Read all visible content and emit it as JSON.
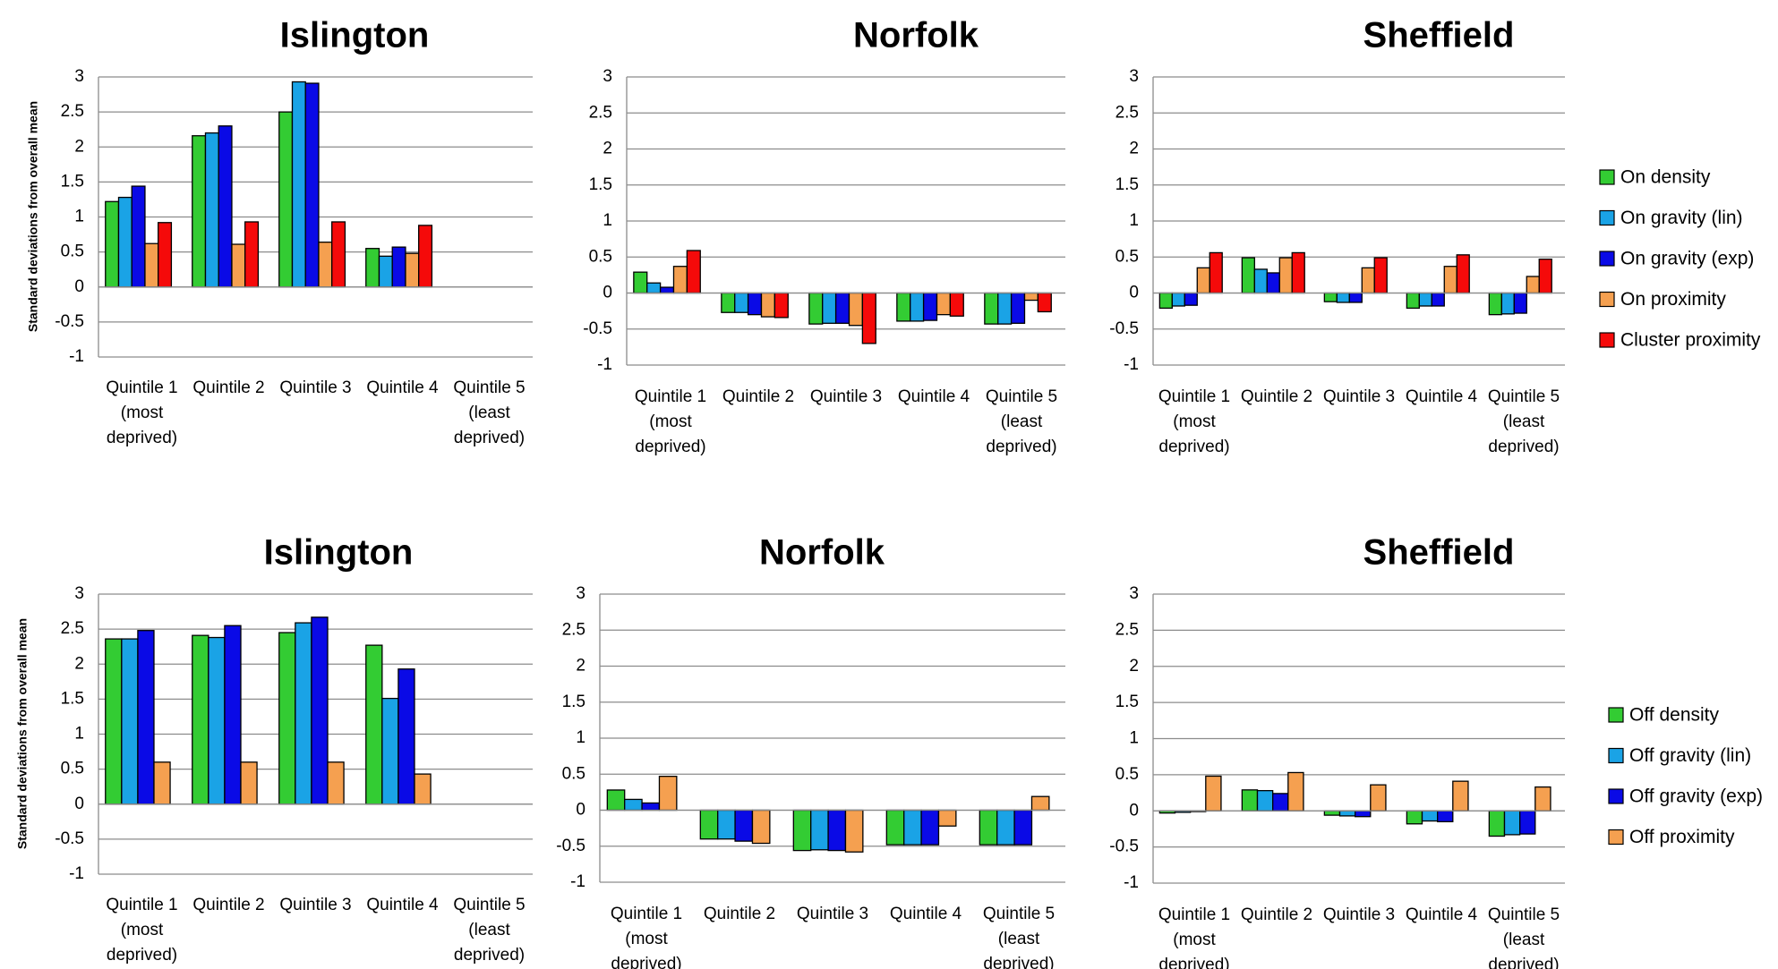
{
  "chart_data": [
    {
      "type": "bar",
      "title": "Islington",
      "ylabel": "Standard deviations from overall mean",
      "ylim": [
        -1,
        3
      ],
      "yticks": [
        "3",
        "2.5",
        "2",
        "1.5",
        "1",
        "0.5",
        "0",
        "-0.5",
        "-1"
      ],
      "categories": [
        [
          "Quintile 1",
          "(most",
          "deprived)"
        ],
        [
          "Quintile 2"
        ],
        [
          "Quintile 3"
        ],
        [
          "Quintile 4"
        ],
        [
          "Quintile 5",
          "(least",
          "deprived)"
        ]
      ],
      "series": [
        {
          "name": "On density",
          "values": [
            1.22,
            2.16,
            2.5,
            0.55,
            null
          ]
        },
        {
          "name": "On gravity (lin)",
          "values": [
            1.28,
            2.2,
            2.93,
            0.44,
            null
          ]
        },
        {
          "name": "On gravity (exp)",
          "values": [
            1.44,
            2.3,
            2.91,
            0.57,
            null
          ]
        },
        {
          "name": "On proximity",
          "values": [
            0.62,
            0.61,
            0.64,
            0.48,
            null
          ]
        },
        {
          "name": "Cluster proximity",
          "values": [
            0.92,
            0.93,
            0.93,
            0.88,
            null
          ]
        }
      ]
    },
    {
      "type": "bar",
      "title": "Norfolk",
      "ylim": [
        -1,
        3
      ],
      "yticks": [
        "3",
        "2.5",
        "2",
        "1.5",
        "1",
        "0.5",
        "0",
        "-0.5",
        "-1"
      ],
      "categories": [
        [
          "Quintile 1",
          "(most",
          "deprived)"
        ],
        [
          "Quintile 2"
        ],
        [
          "Quintile 3"
        ],
        [
          "Quintile 4"
        ],
        [
          "Quintile 5",
          "(least",
          "deprived)"
        ]
      ],
      "series": [
        {
          "name": "On density",
          "values": [
            0.29,
            -0.27,
            -0.43,
            -0.39,
            -0.43
          ]
        },
        {
          "name": "On gravity (lin)",
          "values": [
            0.14,
            -0.27,
            -0.42,
            -0.39,
            -0.43
          ]
        },
        {
          "name": "On gravity (exp)",
          "values": [
            0.08,
            -0.3,
            -0.42,
            -0.38,
            -0.42
          ]
        },
        {
          "name": "On proximity",
          "values": [
            0.37,
            -0.33,
            -0.45,
            -0.3,
            -0.1
          ]
        },
        {
          "name": "Cluster proximity",
          "values": [
            0.59,
            -0.34,
            -0.7,
            -0.32,
            -0.26
          ]
        }
      ]
    },
    {
      "type": "bar",
      "title": "Sheffield",
      "ylim": [
        -1,
        3
      ],
      "yticks": [
        "3",
        "2.5",
        "2",
        "1.5",
        "1",
        "0.5",
        "0",
        "-0.5",
        "-1"
      ],
      "categories": [
        [
          "Quintile 1",
          "(most",
          "deprived)"
        ],
        [
          "Quintile 2"
        ],
        [
          "Quintile 3"
        ],
        [
          "Quintile 4"
        ],
        [
          "Quintile 5",
          "(least",
          "deprived)"
        ]
      ],
      "series": [
        {
          "name": "On density",
          "values": [
            -0.21,
            0.49,
            -0.12,
            -0.21,
            -0.3
          ]
        },
        {
          "name": "On gravity (lin)",
          "values": [
            -0.18,
            0.33,
            -0.13,
            -0.18,
            -0.29
          ]
        },
        {
          "name": "On gravity (exp)",
          "values": [
            -0.17,
            0.28,
            -0.13,
            -0.18,
            -0.28
          ]
        },
        {
          "name": "On proximity",
          "values": [
            0.35,
            0.49,
            0.35,
            0.37,
            0.23
          ]
        },
        {
          "name": "Cluster proximity",
          "values": [
            0.56,
            0.56,
            0.49,
            0.53,
            0.47
          ]
        }
      ]
    },
    {
      "type": "bar",
      "title": "Islington",
      "ylabel": "Standard deviations from overall mean",
      "ylim": [
        -1,
        3
      ],
      "yticks": [
        "3",
        "2.5",
        "2",
        "1.5",
        "1",
        "0.5",
        "0",
        "-0.5",
        "-1"
      ],
      "categories": [
        [
          "Quintile 1",
          "(most",
          "deprived)"
        ],
        [
          "Quintile 2"
        ],
        [
          "Quintile 3"
        ],
        [
          "Quintile 4"
        ],
        [
          "Quintile 5",
          "(least",
          "deprived)"
        ]
      ],
      "series": [
        {
          "name": "Off density",
          "values": [
            2.36,
            2.41,
            2.45,
            2.27,
            null
          ]
        },
        {
          "name": "Off gravity (lin)",
          "values": [
            2.36,
            2.38,
            2.59,
            1.51,
            null
          ]
        },
        {
          "name": "Off gravity (exp)",
          "values": [
            2.48,
            2.55,
            2.67,
            1.93,
            null
          ]
        },
        {
          "name": "Off proximity",
          "values": [
            0.6,
            0.6,
            0.6,
            0.43,
            null
          ]
        }
      ]
    },
    {
      "type": "bar",
      "title": "Norfolk",
      "ylim": [
        -1,
        3
      ],
      "yticks": [
        "3",
        "2.5",
        "2",
        "1.5",
        "1",
        "0.5",
        "0",
        "-0.5",
        "-1"
      ],
      "categories": [
        [
          "Quintile 1",
          "(most",
          "deprived)"
        ],
        [
          "Quintile 2"
        ],
        [
          "Quintile 3"
        ],
        [
          "Quintile 4"
        ],
        [
          "Quintile 5",
          "(least",
          "deprived)"
        ]
      ],
      "series": [
        {
          "name": "Off density",
          "values": [
            0.28,
            -0.4,
            -0.56,
            -0.48,
            -0.48
          ]
        },
        {
          "name": "Off gravity (lin)",
          "values": [
            0.15,
            -0.4,
            -0.55,
            -0.48,
            -0.48
          ]
        },
        {
          "name": "Off gravity (exp)",
          "values": [
            0.1,
            -0.43,
            -0.56,
            -0.48,
            -0.48
          ]
        },
        {
          "name": "Off proximity",
          "values": [
            0.47,
            -0.46,
            -0.58,
            -0.22,
            0.19
          ]
        }
      ]
    },
    {
      "type": "bar",
      "title": "Sheffield",
      "ylim": [
        -1,
        3
      ],
      "yticks": [
        "3",
        "2.5",
        "2",
        "1.5",
        "1",
        "0.5",
        "0",
        "-0.5",
        "-1"
      ],
      "categories": [
        [
          "Quintile 1",
          "(most",
          "deprived)"
        ],
        [
          "Quintile 2"
        ],
        [
          "Quintile 3"
        ],
        [
          "Quintile 4"
        ],
        [
          "Quintile 5",
          "(least",
          "deprived)"
        ]
      ],
      "series": [
        {
          "name": "Off density",
          "values": [
            -0.03,
            0.29,
            -0.06,
            -0.18,
            -0.35
          ]
        },
        {
          "name": "Off gravity (lin)",
          "values": [
            -0.02,
            0.28,
            -0.07,
            -0.14,
            -0.33
          ]
        },
        {
          "name": "Off gravity (exp)",
          "values": [
            -0.01,
            0.24,
            -0.08,
            -0.15,
            -0.32
          ]
        },
        {
          "name": "Off proximity",
          "values": [
            0.48,
            0.53,
            0.36,
            0.41,
            0.33
          ]
        }
      ]
    }
  ],
  "legends": [
    {
      "items": [
        "On density",
        "On gravity (lin)",
        "On gravity (exp)",
        "On proximity",
        "Cluster proximity"
      ]
    },
    {
      "items": [
        "Off density",
        "Off gravity (lin)",
        "Off gravity (exp)",
        "Off proximity"
      ]
    }
  ],
  "colors": {
    "density": "#33cc33",
    "gravity_lin": "#1aa3e6",
    "gravity_exp": "#0a0ae6",
    "proximity": "#f5a050",
    "cluster_proximity": "#f50a0a",
    "gridline": "#8c8c8c",
    "background": "#ffffff"
  }
}
